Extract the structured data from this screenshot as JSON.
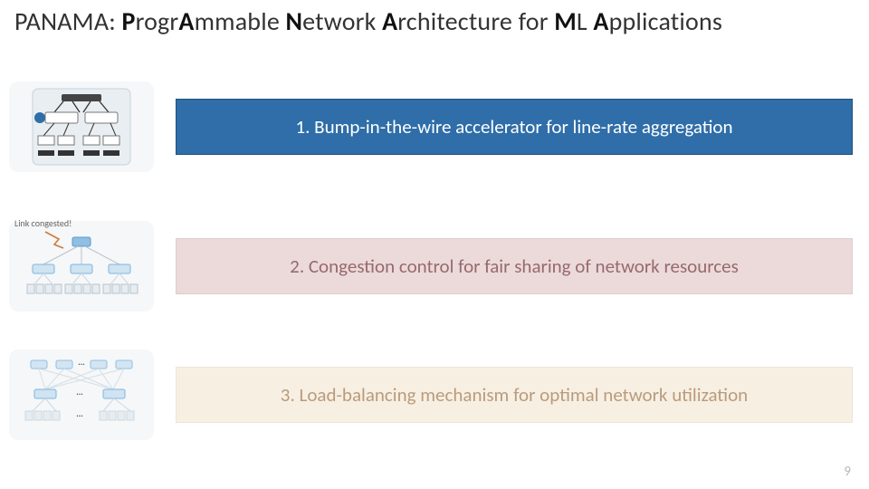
{
  "title": {
    "parts": [
      {
        "t": "PANAMA: ",
        "b": false
      },
      {
        "t": "P",
        "b": true
      },
      {
        "t": "rogr",
        "b": false
      },
      {
        "t": "A",
        "b": true
      },
      {
        "t": "mmable ",
        "b": false
      },
      {
        "t": "N",
        "b": true
      },
      {
        "t": "etwork ",
        "b": false
      },
      {
        "t": "A",
        "b": true
      },
      {
        "t": "rchitecture for ",
        "b": false
      },
      {
        "t": "M",
        "b": true
      },
      {
        "t": "L ",
        "b": false
      },
      {
        "t": "A",
        "b": true
      },
      {
        "t": "pplications",
        "b": false
      }
    ]
  },
  "bars": {
    "b1": "1. Bump-in-the-wire accelerator for line-rate aggregation",
    "b2": "2. Congestion control for fair sharing of network resources",
    "b3": "3. Load-balancing mechanism for optimal network utilization"
  },
  "thumb2_caption": "Link congested!",
  "page_number": "9",
  "colors": {
    "bar1_bg": "#2f6ea8",
    "bar2_bg": "#e7d0d2",
    "bar3_bg": "#f4e6d2",
    "thumb_bg": "#f5f7f9",
    "switch_blue": "#3a8bc9",
    "link_gray": "#9aa7b0",
    "marker_blue": "#2f6ea8"
  }
}
